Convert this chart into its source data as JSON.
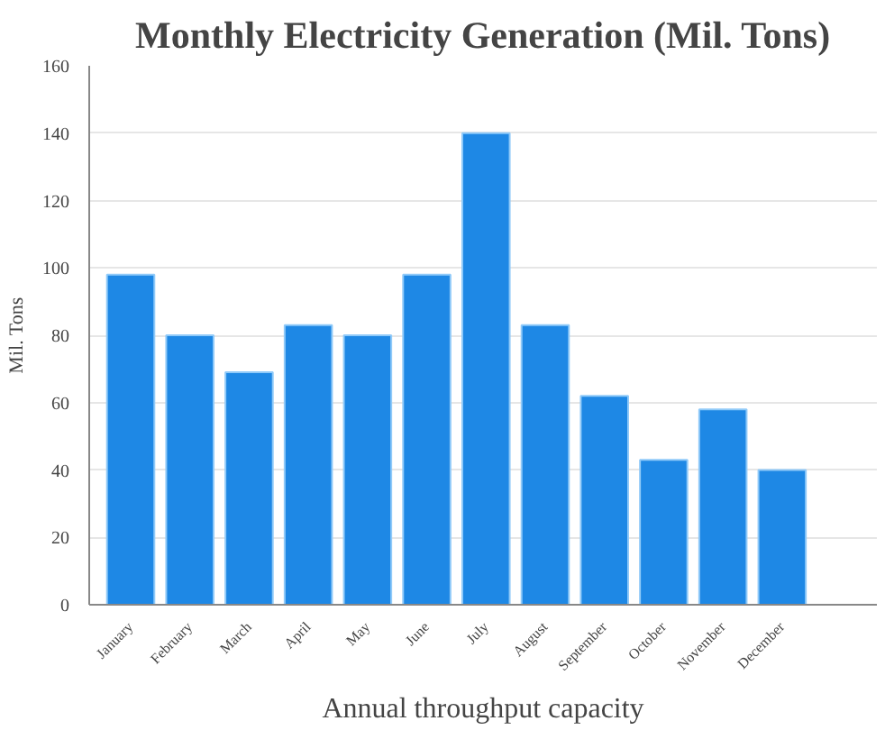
{
  "chart_data": {
    "type": "bar",
    "title": "Monthly Electricity Generation (Mil. Tons)",
    "xlabel": "Annual throughput capacity",
    "ylabel": "Mil. Tons",
    "categories": [
      "January",
      "February",
      "March",
      "April",
      "May",
      "June",
      "July",
      "August",
      "September",
      "October",
      "November",
      "December"
    ],
    "values": [
      98,
      80,
      69,
      83,
      80,
      98,
      140,
      83,
      62,
      43,
      58,
      40
    ],
    "color": "#1e88e5",
    "ylim": [
      0,
      160
    ],
    "yticks": [
      0,
      20,
      40,
      60,
      80,
      100,
      120,
      140,
      160
    ],
    "grid": "y"
  }
}
